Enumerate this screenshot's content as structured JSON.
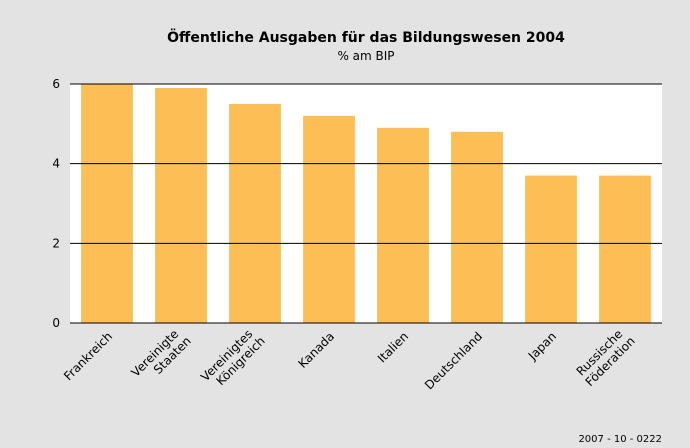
{
  "chart_data": {
    "type": "bar",
    "title": "Öffentliche Ausgaben für das Bildungswesen 2004",
    "subtitle": "% am BIP",
    "categories": [
      "Frankreich",
      "Vereinigte Staaten",
      "Vereinigtes Königreich",
      "Kanada",
      "Italien",
      "Deutschland",
      "Japan",
      "Russische Föderation"
    ],
    "values": [
      6.0,
      5.9,
      5.5,
      5.2,
      4.9,
      4.8,
      3.7,
      3.7
    ],
    "color": "#fdbe55",
    "ylim": [
      0,
      6
    ],
    "yticks": [
      0,
      2,
      4,
      6
    ],
    "grid": true,
    "source": "2007 - 10 - 0222"
  }
}
